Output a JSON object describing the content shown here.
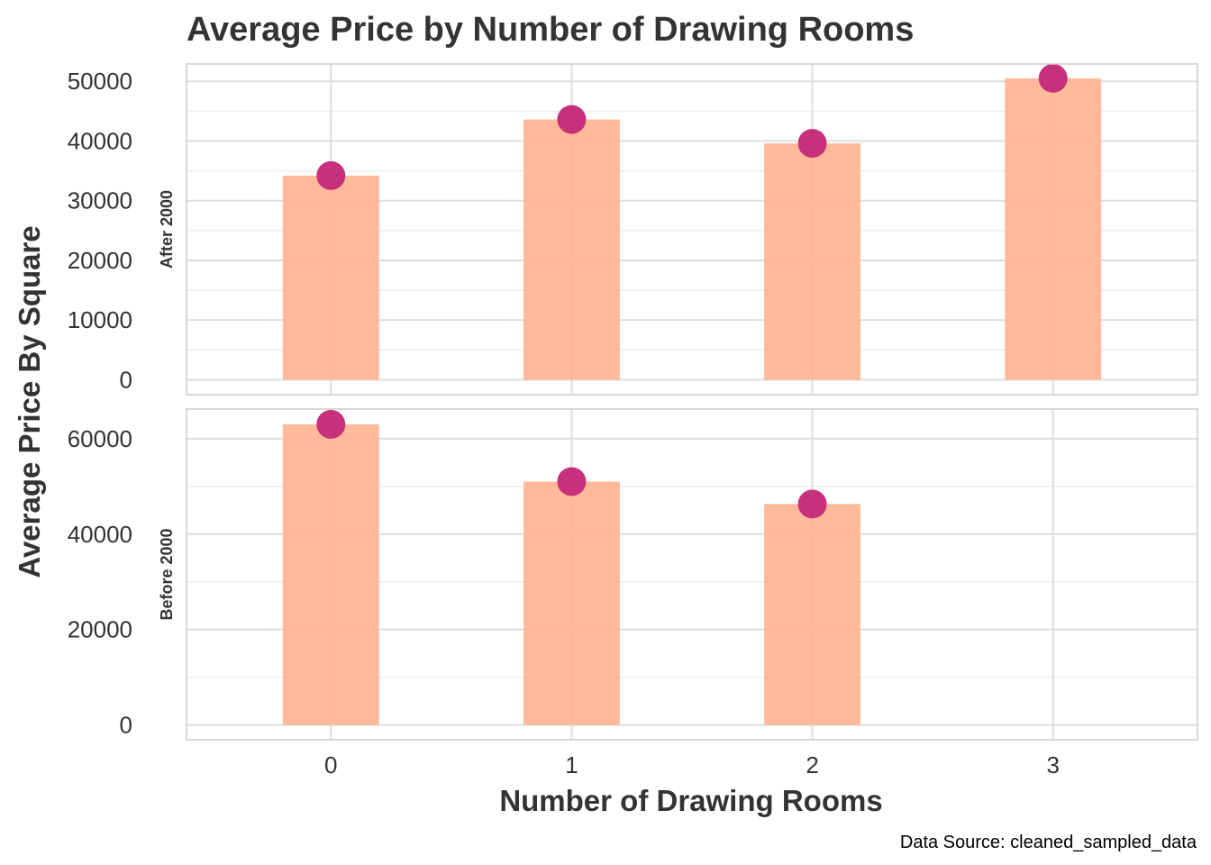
{
  "chart_data": {
    "type": "bar",
    "title": "Average Price by Number of Drawing Rooms",
    "xlabel": "Number of Drawing Rooms",
    "ylabel": "Average Price By Square",
    "caption": "Data Source: cleaned_sampled_data",
    "x_ticks": [
      "0",
      "1",
      "2",
      "3"
    ],
    "grid": true,
    "colors": {
      "bar": "#FFB38F",
      "point": "#C7307A",
      "grid": "#dddddd",
      "border": "#cccccc"
    },
    "panels": [
      {
        "label": "After 2000",
        "categories": [
          "0",
          "1",
          "2",
          "3"
        ],
        "values": [
          34200,
          43600,
          39600,
          50500
        ],
        "ylim": [
          -2500,
          52900
        ],
        "y_ticks": [
          0,
          10000,
          20000,
          30000,
          40000,
          50000
        ],
        "y_tick_labels": [
          "0",
          "10000",
          "20000",
          "30000",
          "40000",
          "50000"
        ]
      },
      {
        "label": "Before 2000",
        "categories": [
          "0",
          "1",
          "2"
        ],
        "values": [
          63000,
          51000,
          46300
        ],
        "ylim": [
          -3100,
          66200
        ],
        "y_ticks": [
          0,
          20000,
          40000,
          60000
        ],
        "y_tick_labels": [
          "0",
          "20000",
          "40000",
          "60000"
        ]
      }
    ]
  }
}
